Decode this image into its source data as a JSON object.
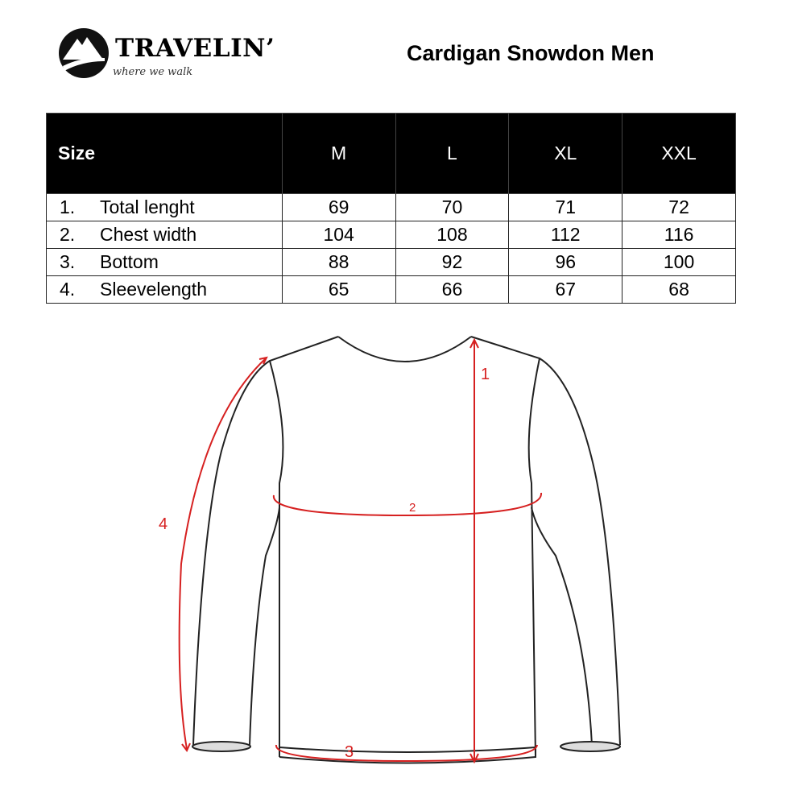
{
  "logo": {
    "brand": "TRAVELIN’",
    "tagline": "where we walk"
  },
  "title": "Cardigan Snowdon Men",
  "table": {
    "header": [
      "Size",
      "M",
      "L",
      "XL",
      "XXL"
    ],
    "rows": [
      {
        "num": "1.",
        "label": "Total lenght",
        "values": [
          "69",
          "70",
          "71",
          "72"
        ]
      },
      {
        "num": "2.",
        "label": "Chest width",
        "values": [
          "104",
          "108",
          "112",
          "116"
        ]
      },
      {
        "num": "3.",
        "label": "Bottom",
        "values": [
          "88",
          "92",
          "96",
          "100"
        ]
      },
      {
        "num": "4.",
        "label": "Sleevelength",
        "values": [
          "65",
          "66",
          "67",
          "68"
        ]
      }
    ]
  },
  "diagram": {
    "labels": [
      "1",
      "2",
      "3",
      "4"
    ],
    "measure_color": "#d62020"
  }
}
